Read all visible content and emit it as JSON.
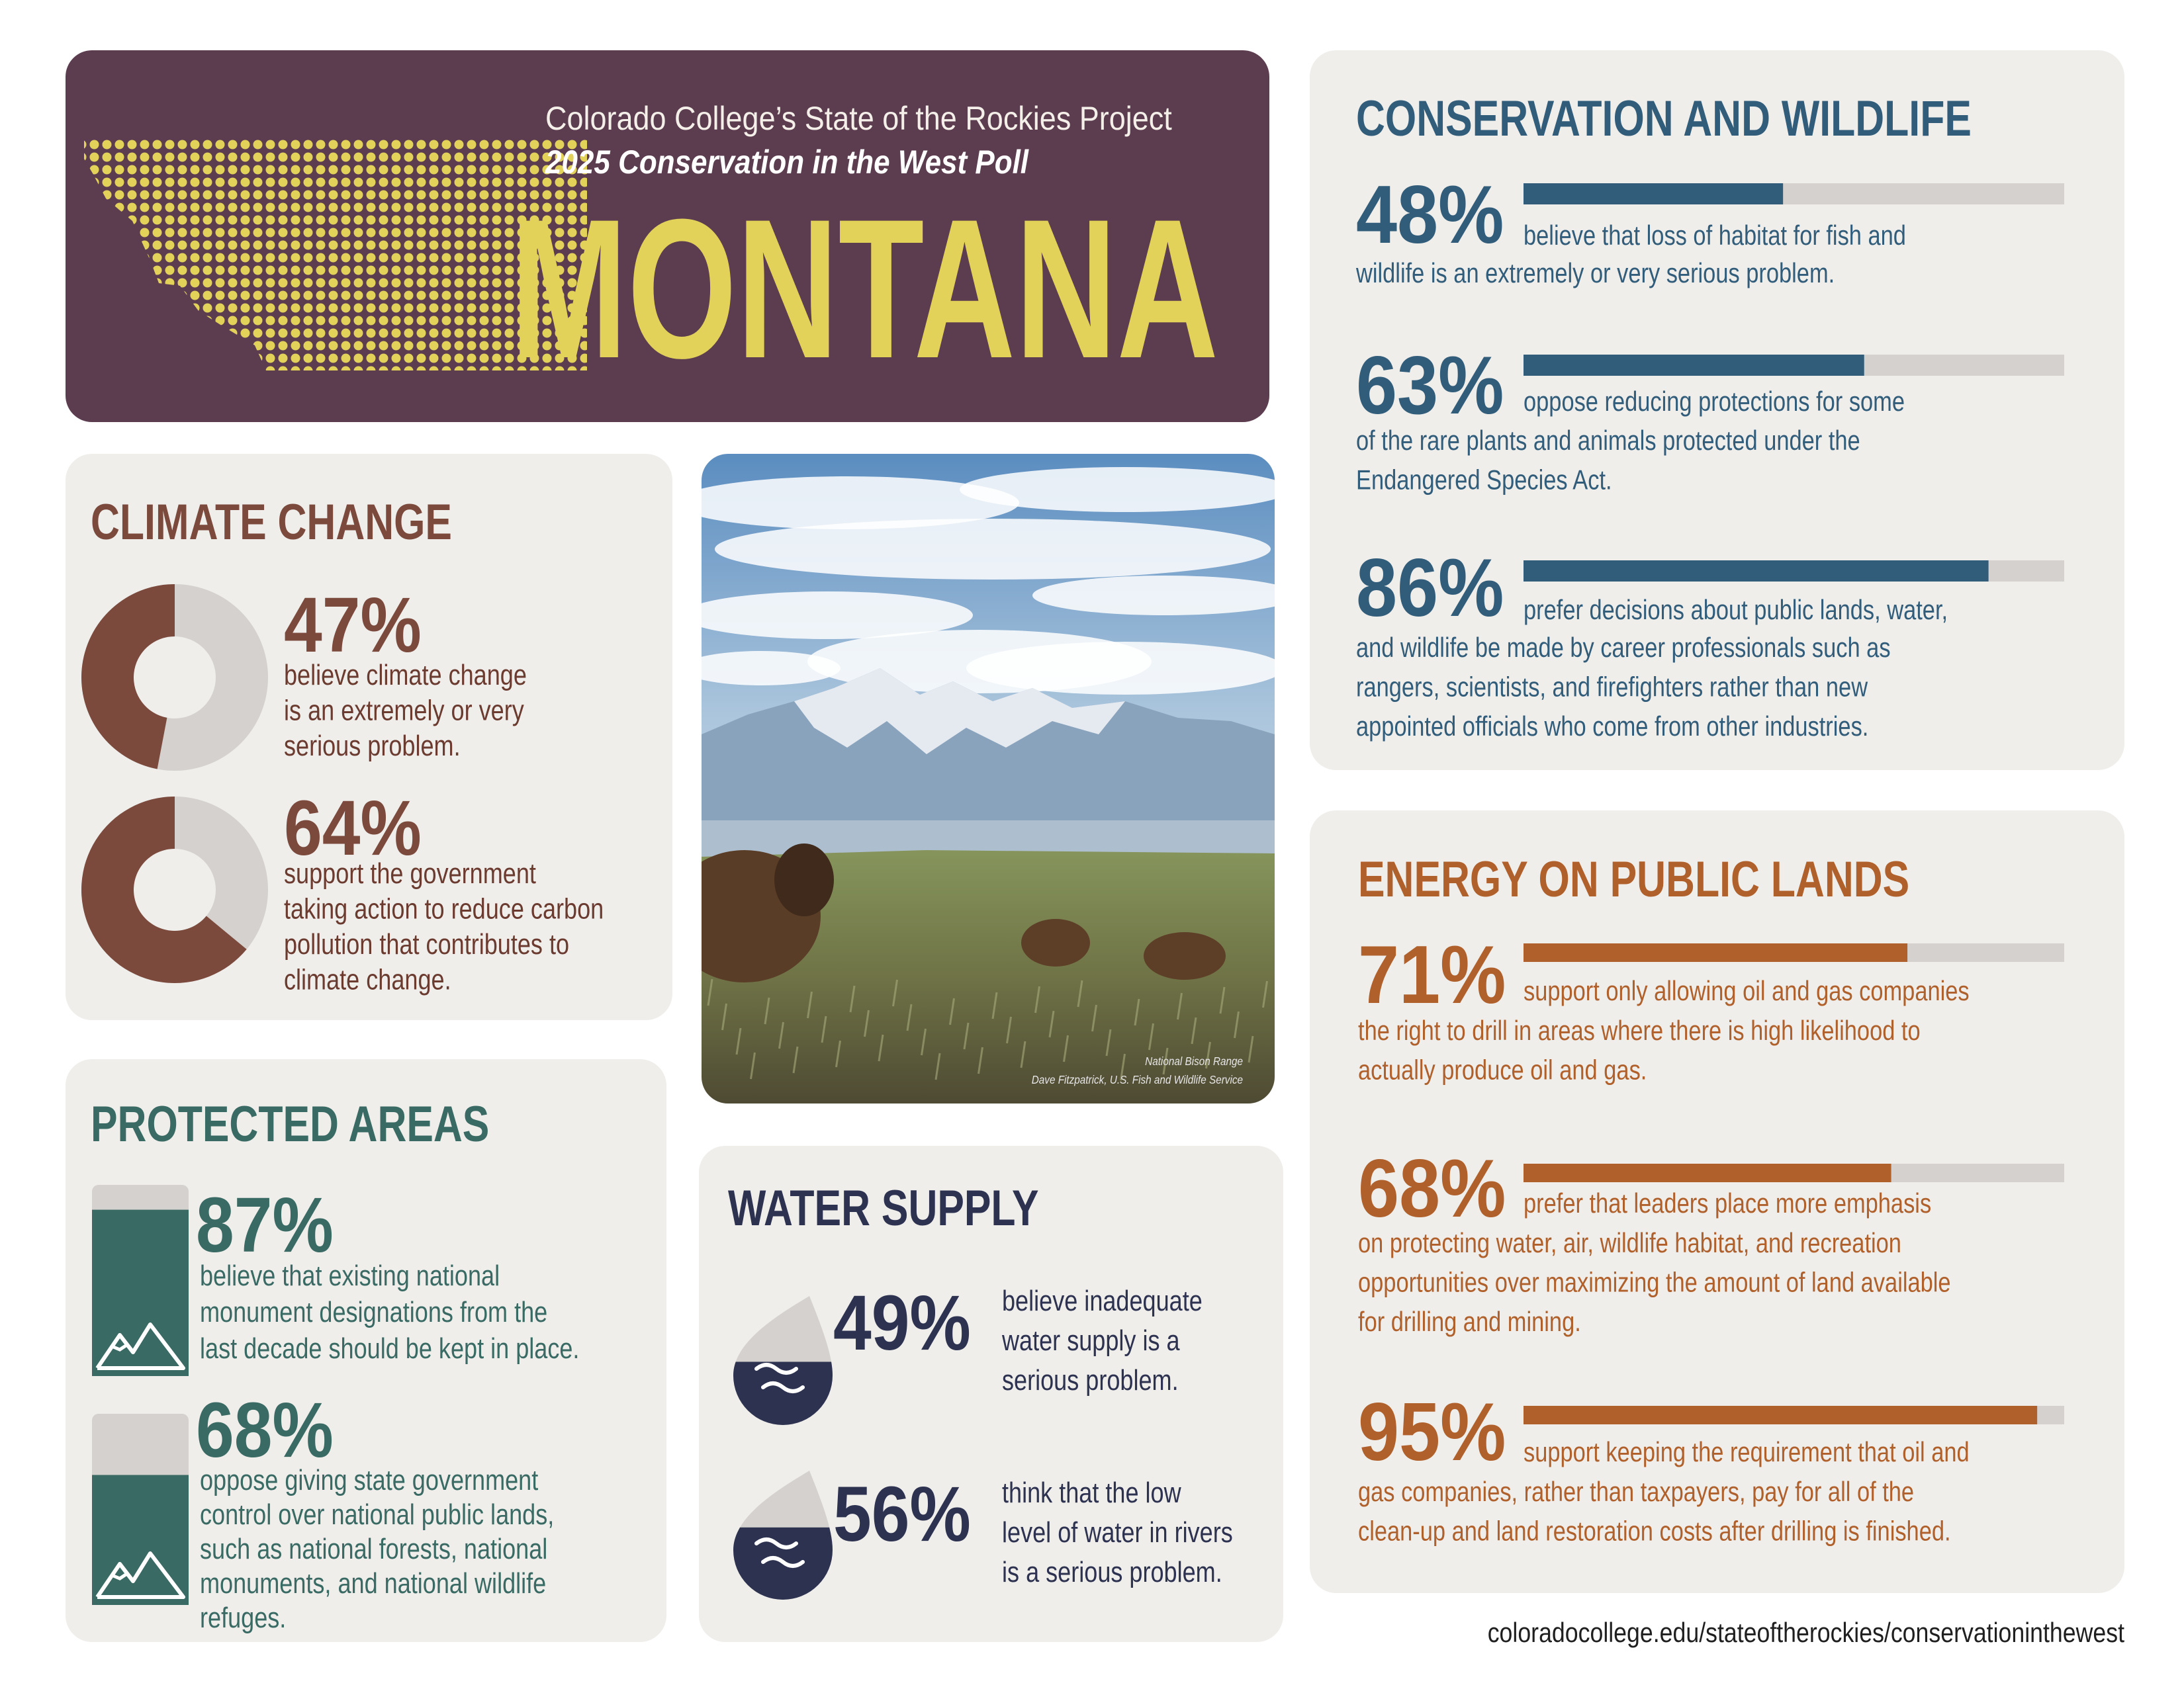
{
  "header": {
    "project": "Colorado College’s State of the Rockies Project",
    "poll": "2025 Conservation in the West Poll",
    "state": "MONTANA"
  },
  "climate_change": {
    "title": "CLIMATE CHANGE",
    "color": "#7b4a3d",
    "stats": [
      {
        "value": 47,
        "label": "47%",
        "text": [
          "believe climate change",
          "is an extremely or very",
          "serious problem."
        ]
      },
      {
        "value": 64,
        "label": "64%",
        "text": [
          "support the government",
          "taking action to reduce carbon",
          "pollution that contributes to",
          "climate change."
        ]
      }
    ]
  },
  "photo": {
    "caption": [
      "National Bison Range",
      "Dave Fitzpatrick, U.S. Fish and Wildlife Service"
    ]
  },
  "protected_areas": {
    "title": "PROTECTED AREAS",
    "color": "#3a6a64",
    "stats": [
      {
        "value": 87,
        "label": "87%",
        "text": [
          "believe that existing national",
          "monument designations from the",
          "last decade should be kept in place."
        ]
      },
      {
        "value": 68,
        "label": "68%",
        "text": [
          "oppose giving state government",
          "control over national public lands,",
          "such as national forests, national",
          "monuments, and national wildlife",
          "refuges."
        ]
      }
    ]
  },
  "water_supply": {
    "title": "WATER SUPPLY",
    "color": "#2d3250",
    "stats": [
      {
        "value": 49,
        "label": "49%",
        "text": [
          "believe inadequate",
          "water supply is a",
          "serious problem."
        ]
      },
      {
        "value": 56,
        "label": "56%",
        "text": [
          "think that the low",
          "level of water in rivers",
          "is a serious problem."
        ]
      }
    ]
  },
  "conservation_and_wildlife": {
    "title": "CONSERVATION AND WILDLIFE",
    "color": "#325d7a",
    "stats": [
      {
        "value": 48,
        "label": "48%",
        "text": [
          "believe that loss of habitat for fish and",
          "wildlife is an extremely or very serious problem."
        ]
      },
      {
        "value": 63,
        "label": "63%",
        "text": [
          "oppose reducing protections for some",
          "of the rare plants and animals protected under the",
          "Endangered Species Act."
        ]
      },
      {
        "value": 86,
        "label": "86%",
        "text": [
          "prefer decisions about public lands, water,",
          "and wildlife be made by career professionals such as",
          "rangers, scientists, and firefighters rather than new",
          "appointed officials who come from other industries."
        ]
      }
    ]
  },
  "energy_on_public_lands": {
    "title": "ENERGY ON PUBLIC LANDS",
    "color": "#b0602b",
    "stats": [
      {
        "value": 71,
        "label": "71%",
        "text": [
          "support only allowing oil and gas companies",
          "the right to drill in areas where there is high likelihood to",
          "actually produce oil and gas."
        ]
      },
      {
        "value": 68,
        "label": "68%",
        "text": [
          "prefer that leaders place more emphasis",
          "on protecting water, air, wildlife habitat, and recreation",
          "opportunities over maximizing the amount of land available",
          "for drilling and mining."
        ]
      },
      {
        "value": 95,
        "label": "95%",
        "text": [
          "support keeping the requirement that oil and",
          "gas companies, rather than taxpayers, pay for all of the",
          "clean-up and land restoration costs after drilling is finished."
        ]
      }
    ]
  },
  "footer": {
    "url": "coloradocollege.edu/stateoftherockies/conservationinthewest"
  }
}
